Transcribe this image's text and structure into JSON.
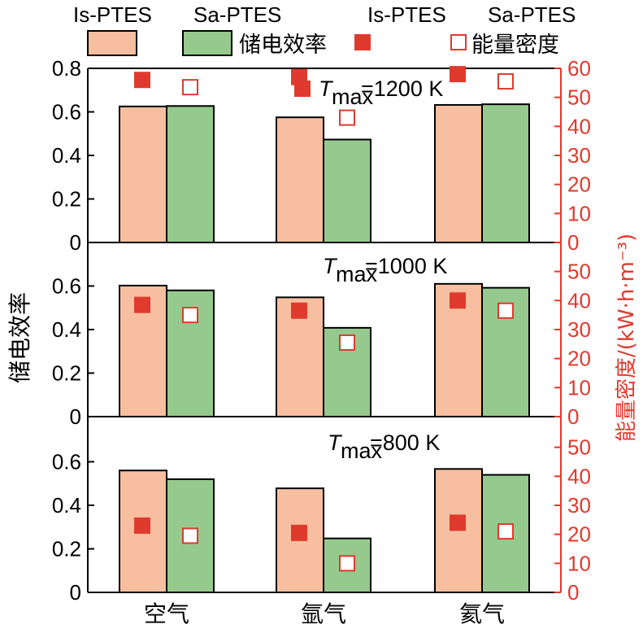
{
  "legend": {
    "row1": [
      "Is-PTES",
      "Sa-PTES",
      "Is-PTES",
      "Sa-PTES"
    ],
    "efficiency_label": "储电效率",
    "density_label": "能量密度"
  },
  "chart_data": {
    "type": "bar",
    "title": "",
    "categories": [
      "空气",
      "氩气",
      "氦气"
    ],
    "series_names": [
      "Is-PTES",
      "Sa-PTES"
    ],
    "ylabel_left": "储电效率",
    "ylabel_right": "能量密度/(kW·h·m⁻³)",
    "left_ylim": [
      0,
      0.8
    ],
    "right_ylim": [
      0,
      60
    ],
    "colors": {
      "is_bar": "#f7bf9f",
      "sa_bar": "#96c98d",
      "density": "#e03a2e",
      "axis": "#000000"
    },
    "panels": [
      {
        "label_t": "T",
        "label_sub": "max",
        "label_rest": "=1200 K",
        "efficiency": {
          "Is-PTES": [
            0.625,
            0.575,
            0.632
          ],
          "Sa-PTES": [
            0.627,
            0.473,
            0.635
          ]
        },
        "density": {
          "Is-PTES": [
            56,
            57,
            58
          ],
          "Sa-PTES": [
            53.5,
            43,
            55.5
          ]
        },
        "yticks_left": [
          "0",
          "0.2",
          "0.4",
          "0.6",
          "0.8"
        ],
        "yticks_right": [
          "0",
          "10",
          "20",
          "30",
          "40",
          "50",
          "60"
        ]
      },
      {
        "label_t": "T",
        "label_sub": "max",
        "label_rest": "=1000 K",
        "efficiency": {
          "Is-PTES": [
            0.602,
            0.548,
            0.61
          ],
          "Sa-PTES": [
            0.58,
            0.408,
            0.592
          ]
        },
        "density": {
          "Is-PTES": [
            38.5,
            36.5,
            40
          ],
          "Sa-PTES": [
            35,
            25.5,
            36.5
          ]
        },
        "yticks_left": [
          "0",
          "0.2",
          "0.4",
          "0.6"
        ],
        "yticks_right": [
          "0",
          "10",
          "20",
          "30",
          "40",
          "50"
        ]
      },
      {
        "label_t": "T",
        "label_sub": "max",
        "label_rest": "=800 K",
        "efficiency": {
          "Is-PTES": [
            0.56,
            0.478,
            0.567
          ],
          "Sa-PTES": [
            0.52,
            0.248,
            0.54
          ]
        },
        "density": {
          "Is-PTES": [
            23,
            20.5,
            24
          ],
          "Sa-PTES": [
            19.5,
            10,
            21
          ]
        },
        "yticks_left": [
          "0",
          "0.2",
          "0.4",
          "0.6"
        ],
        "yticks_right": [
          "0",
          "10",
          "20",
          "30",
          "40",
          "50"
        ]
      }
    ]
  }
}
